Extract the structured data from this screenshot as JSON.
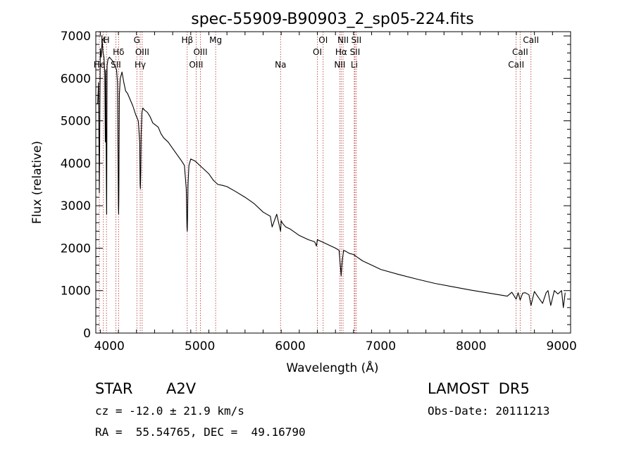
{
  "chart_data": {
    "type": "line",
    "title": "spec-55909-B90903_2_sp05-224.fits",
    "xlabel": "Wavelength (Å)",
    "ylabel": "Flux (relative)",
    "xlim": [
      3850,
      9100
    ],
    "ylim": [
      0,
      7100
    ],
    "xticks": [
      4000,
      5000,
      6000,
      7000,
      8000,
      9000
    ],
    "yticks": [
      0,
      1000,
      2000,
      3000,
      4000,
      5000,
      6000,
      7000
    ],
    "grid": false,
    "line_color": "#000000",
    "marker_color": "#b03030",
    "series": [
      {
        "x": [
          3870,
          3880,
          3889,
          3900,
          3910,
          3920,
          3930,
          3940,
          3950,
          3955,
          3960,
          3966,
          3970,
          3975,
          3985,
          4000,
          4020,
          4040,
          4060,
          4080,
          4090,
          4100,
          4102,
          4105,
          4110,
          4120,
          4140,
          4160,
          4180,
          4200,
          4230,
          4260,
          4290,
          4320,
          4335,
          4340,
          4343,
          4347,
          4352,
          4360,
          4370,
          4390,
          4420,
          4450,
          4480,
          4510,
          4540,
          4570,
          4600,
          4650,
          4700,
          4750,
          4800,
          4830,
          4850,
          4858,
          4861,
          4864,
          4870,
          4880,
          4900,
          4950,
          5000,
          5050,
          5100,
          5150,
          5200,
          5250,
          5300,
          5400,
          5500,
          5600,
          5700,
          5780,
          5800,
          5850,
          5893,
          5900,
          5910,
          5950,
          6000,
          6100,
          6200,
          6270,
          6290,
          6300,
          6350,
          6400,
          6450,
          6500,
          6540,
          6563,
          6575,
          6590,
          6620,
          6650,
          6700,
          6800,
          6900,
          7000,
          7200,
          7400,
          7600,
          7800,
          8000,
          8200,
          8400,
          8450,
          8498,
          8520,
          8542,
          8570,
          8600,
          8640,
          8662,
          8700,
          8750,
          8790,
          8830,
          8850,
          8880,
          8920,
          8960,
          9000,
          9020,
          9040
        ],
        "y": [
          5400,
          5900,
          3300,
          6700,
          6500,
          6900,
          6600,
          6500,
          6100,
          4500,
          6200,
          3900,
          2800,
          6300,
          6450,
          6500,
          6450,
          6400,
          6300,
          6200,
          5900,
          3000,
          2800,
          3200,
          5600,
          6000,
          6150,
          5900,
          5700,
          5650,
          5500,
          5350,
          5150,
          5000,
          4500,
          3500,
          3400,
          3800,
          4700,
          5200,
          5300,
          5250,
          5200,
          5100,
          4950,
          4900,
          4850,
          4700,
          4600,
          4500,
          4350,
          4200,
          4050,
          3950,
          3400,
          2500,
          2400,
          2700,
          3500,
          3950,
          4100,
          4050,
          3950,
          3850,
          3750,
          3600,
          3500,
          3480,
          3450,
          3330,
          3200,
          3050,
          2850,
          2750,
          2500,
          2800,
          2400,
          2650,
          2600,
          2500,
          2450,
          2300,
          2200,
          2150,
          2050,
          2200,
          2150,
          2100,
          2050,
          2000,
          1950,
          1350,
          1700,
          1950,
          1920,
          1880,
          1850,
          1700,
          1600,
          1500,
          1380,
          1270,
          1170,
          1090,
          1010,
          940,
          870,
          960,
          800,
          950,
          780,
          940,
          950,
          900,
          650,
          980,
          820,
          700,
          950,
          1000,
          650,
          1000,
          920,
          1000,
          600,
          950
        ]
      }
    ],
    "lines": [
      {
        "x": 3889,
        "label": "He",
        "row": 3
      },
      {
        "x": 3934,
        "label": "K",
        "row": 1
      },
      {
        "x": 3968,
        "label": "H",
        "row": 1
      },
      {
        "x": 4072,
        "label": "SII",
        "row": 3
      },
      {
        "x": 4102,
        "label": "Hδ",
        "row": 2
      },
      {
        "x": 4304,
        "label": "G",
        "row": 1
      },
      {
        "x": 4341,
        "label": "Hγ",
        "row": 3
      },
      {
        "x": 4363,
        "label": "OIII",
        "row": 2
      },
      {
        "x": 4861,
        "label": "Hβ",
        "row": 1
      },
      {
        "x": 4959,
        "label": "OIII",
        "row": 3
      },
      {
        "x": 5007,
        "label": "OIII",
        "row": 2
      },
      {
        "x": 5175,
        "label": "Mg",
        "row": 1
      },
      {
        "x": 5893,
        "label": "Na",
        "row": 3
      },
      {
        "x": 6300,
        "label": "OI",
        "row": 2
      },
      {
        "x": 6364,
        "label": "OI",
        "row": 1
      },
      {
        "x": 6548,
        "label": "NII",
        "row": 3
      },
      {
        "x": 6563,
        "label": "Hα",
        "row": 2
      },
      {
        "x": 6584,
        "label": "NII",
        "row": 1
      },
      {
        "x": 6708,
        "label": "Li",
        "row": 3
      },
      {
        "x": 6716,
        "label": "SII",
        "row": 2
      },
      {
        "x": 6731,
        "label": "SII",
        "row": 1
      },
      {
        "x": 8498,
        "label": "CaII",
        "row": 3
      },
      {
        "x": 8542,
        "label": "CaII",
        "row": 2
      },
      {
        "x": 8662,
        "label": "CaII",
        "row": 1
      }
    ]
  },
  "info": {
    "class": "STAR",
    "subclass": "A2V",
    "survey": "LAMOST  DR5",
    "cz": "cz = -12.0 ± 21.9 km/s",
    "obs_date": "Obs-Date: 20111213",
    "coords": "RA =  55.54765, DEC =  49.16790"
  }
}
